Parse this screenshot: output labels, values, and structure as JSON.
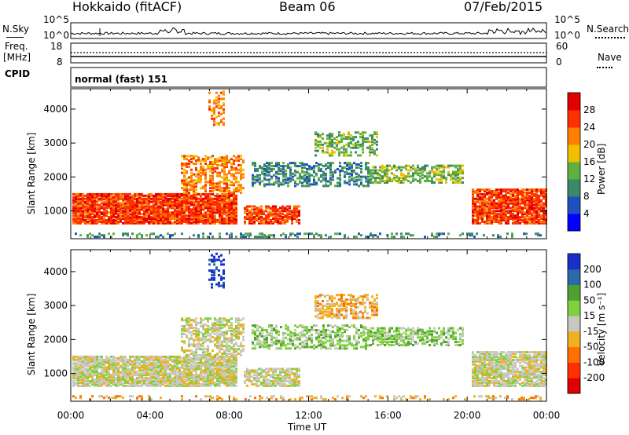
{
  "header": {
    "station": "Hokkaido (fitACF)",
    "beam": "Beam 06",
    "date": "07/Feb/2015"
  },
  "aux_panels": {
    "nsky_label": "N.Sky",
    "nsearch_label": "N.Search",
    "sky_ticks": [
      "10^5",
      "10^0"
    ],
    "sky_ticks_right": [
      "10^5",
      "10^0"
    ],
    "freq_label_top": "Freq.",
    "freq_label_unit": "[MHz]",
    "freq_ticks": [
      "18",
      "8"
    ],
    "nave_label": "Nave",
    "nave_ticks": [
      "60",
      "0"
    ],
    "cpid_label": "CPID",
    "cpid_value": "normal (fast) 151"
  },
  "chart_data": [
    {
      "type": "heatmap",
      "title": "",
      "ylabel": "Slant Range [km]",
      "yticks": [
        "1000",
        "2000",
        "3000",
        "4000"
      ],
      "colorbar_label": "Power [dB]",
      "colorbar_ticks": [
        "4",
        "8",
        "12",
        "16",
        "20",
        "24",
        "28"
      ],
      "colorbar_colors": [
        "#0000ff",
        "#2050c0",
        "#3a8a6a",
        "#60b040",
        "#f0c000",
        "#ff8000",
        "#ff3000",
        "#e00000"
      ]
    },
    {
      "type": "heatmap",
      "title": "",
      "ylabel": "Slant Range [km]",
      "yticks": [
        "1000",
        "2000",
        "3000",
        "4000"
      ],
      "colorbar_label": "Velocity [m s⁻¹]",
      "colorbar_ticks": [
        "200",
        "100",
        "50",
        "15",
        "-15",
        "-50",
        "-100",
        "-200"
      ],
      "colorbar_colors": [
        "#1830c8",
        "#2a6aa8",
        "#50a030",
        "#80d040",
        "#c8c8c0",
        "#f0b020",
        "#ff7000",
        "#ff3000",
        "#e00000"
      ]
    }
  ],
  "xaxis": {
    "ticks": [
      "00:00",
      "04:00",
      "08:00",
      "12:00",
      "16:00",
      "20:00",
      "00:00"
    ],
    "label": "Time UT"
  }
}
